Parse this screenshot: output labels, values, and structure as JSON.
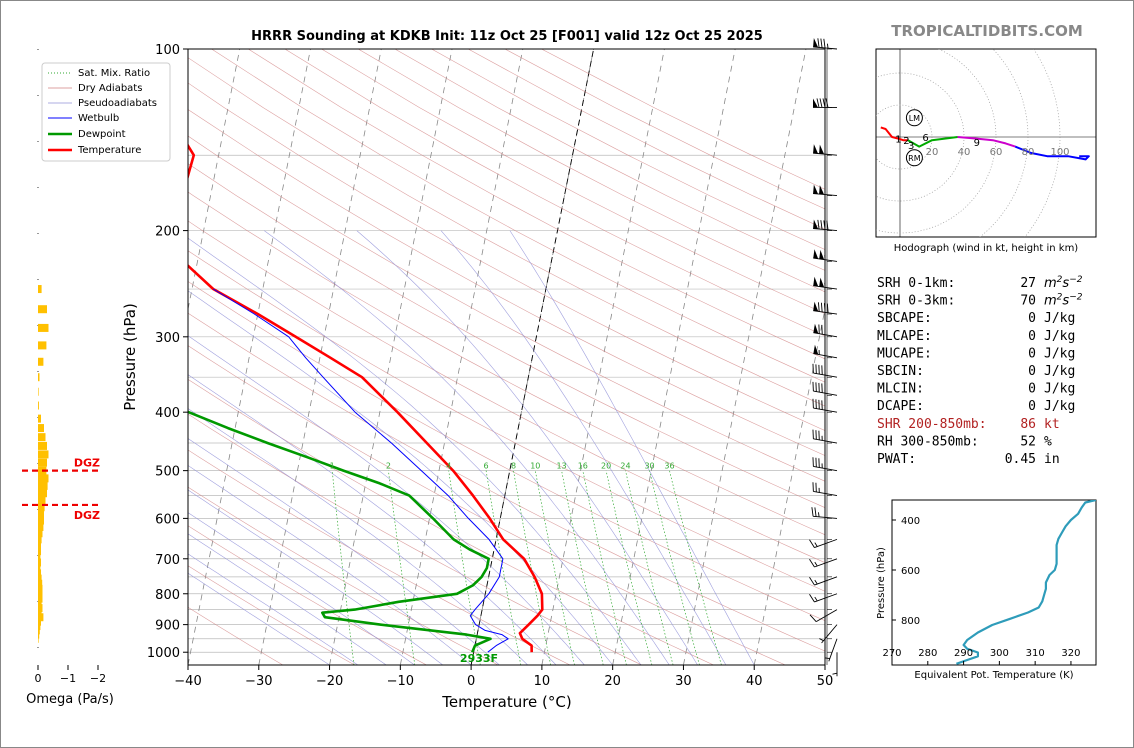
{
  "watermark": "TROPICALTIDBITS.COM",
  "chart_data": [
    {
      "type": "line",
      "title": "HRRR Sounding at KDKB Init: 11z Oct 25 [F001] valid 12z Oct 25 2025",
      "xlabel": "Temperature (°C)",
      "ylabel": "Pressure (hPa)",
      "xlim": [
        -40,
        50
      ],
      "ylim": [
        1050,
        100
      ],
      "yscale": "log",
      "skew": "skew-T",
      "xticks": [
        "−40",
        "−30",
        "−20",
        "−10",
        "0",
        "10",
        "20",
        "30",
        "40",
        "50"
      ],
      "yticks": [
        "100",
        "200",
        "300",
        "400",
        "500",
        "600",
        "700",
        "800",
        "900",
        "1000"
      ],
      "legend_position": "top-left",
      "legend": [
        "Sat. Mix. Ratio",
        "Dry Adiabats",
        "Pseudoadiabats",
        "Wetbulb",
        "Dewpoint",
        "Temperature"
      ],
      "mixing_ratio_labels": [
        "1",
        "2",
        "4",
        "6",
        "8",
        "10",
        "13",
        "16",
        "20",
        "24",
        "30",
        "36"
      ],
      "surface_label": "2933F",
      "series": [
        {
          "name": "Temperature",
          "color": "#ff0000",
          "points": [
            [
              8.2,
              1000
            ],
            [
              8.0,
              975
            ],
            [
              6.5,
              950
            ],
            [
              6.0,
              930
            ],
            [
              7.0,
              900
            ],
            [
              8.0,
              870
            ],
            [
              8.5,
              850
            ],
            [
              8.0,
              800
            ],
            [
              6.5,
              750
            ],
            [
              4.5,
              700
            ],
            [
              1.0,
              650
            ],
            [
              -1.5,
              600
            ],
            [
              -4.5,
              550
            ],
            [
              -8.0,
              500
            ],
            [
              -12.5,
              450
            ],
            [
              -17.5,
              400
            ],
            [
              -23.5,
              350
            ],
            [
              -28.5,
              325
            ],
            [
              -34.0,
              300
            ],
            [
              -40.0,
              275
            ],
            [
              -47.0,
              250
            ],
            [
              -52.0,
              225
            ],
            [
              -54.0,
              200
            ],
            [
              -54.0,
              175
            ],
            [
              -53.5,
              150
            ],
            [
              -59.0,
              125
            ],
            [
              -64.0,
              100
            ]
          ]
        },
        {
          "name": "Dewpoint",
          "color": "#009900",
          "points": [
            [
              -0.2,
              1000
            ],
            [
              0.0,
              975
            ],
            [
              2.0,
              950
            ],
            [
              -1.5,
              935
            ],
            [
              -14.0,
              900
            ],
            [
              -22.0,
              875
            ],
            [
              -22.5,
              860
            ],
            [
              -18.0,
              850
            ],
            [
              -12.0,
              825
            ],
            [
              -4.0,
              800
            ],
            [
              -2.0,
              775
            ],
            [
              -1.0,
              750
            ],
            [
              -0.5,
              725
            ],
            [
              -0.5,
              700
            ],
            [
              -3.5,
              675
            ],
            [
              -6.0,
              650
            ],
            [
              -9.5,
              600
            ],
            [
              -13.5,
              550
            ],
            [
              -18.0,
              525
            ],
            [
              -23.5,
              500
            ],
            [
              -29.0,
              475
            ],
            [
              -35.0,
              450
            ],
            [
              -41.0,
              425
            ],
            [
              -47.0,
              400
            ],
            [
              -52.0,
              375
            ],
            [
              -57.0,
              350
            ],
            [
              -63.0,
              325
            ],
            [
              -70.0,
              300
            ],
            [
              -74.5,
              275
            ],
            [
              -78.0,
              250
            ],
            [
              -82.0,
              225
            ],
            [
              -85.0,
              200
            ],
            [
              -89.0,
              175
            ],
            [
              -92.0,
              150
            ],
            [
              -95.5,
              125
            ],
            [
              -98.0,
              100
            ]
          ]
        },
        {
          "name": "Wetbulb",
          "color": "#0000ff",
          "points": [
            [
              2.0,
              1000
            ],
            [
              3.0,
              975
            ],
            [
              4.5,
              950
            ],
            [
              3.5,
              935
            ],
            [
              1.0,
              920
            ],
            [
              -0.5,
              900
            ],
            [
              -1.5,
              870
            ],
            [
              -1.0,
              850
            ],
            [
              0.5,
              800
            ],
            [
              1.5,
              750
            ],
            [
              1.5,
              700
            ],
            [
              -1.0,
              650
            ],
            [
              -4.5,
              600
            ],
            [
              -8.0,
              550
            ],
            [
              -12.5,
              500
            ],
            [
              -17.5,
              450
            ],
            [
              -23.5,
              400
            ],
            [
              -29.0,
              350
            ],
            [
              -32.0,
              325
            ],
            [
              -35.0,
              300
            ],
            [
              -40.5,
              275
            ],
            [
              -47.0,
              250
            ]
          ]
        }
      ]
    },
    {
      "type": "scatter",
      "title": "Hodograph (wind in kt, height in km)",
      "rings": [
        "20",
        "40",
        "60",
        "80",
        "100"
      ],
      "markers": [
        "LM",
        "RM"
      ],
      "height_labels": [
        "1",
        "2",
        "3",
        "6",
        "9"
      ],
      "series": [
        {
          "name": "0-3 km",
          "color": "#ff0000",
          "points": [
            [
              -12,
              6
            ],
            [
              -9,
              5
            ],
            [
              -5,
              0
            ],
            [
              -1,
              -1
            ],
            [
              2,
              -2
            ],
            [
              5,
              -2
            ]
          ]
        },
        {
          "name": "3-6 km",
          "color": "#00aa00",
          "points": [
            [
              5,
              -2
            ],
            [
              12,
              -6
            ],
            [
              20,
              -2
            ],
            [
              28,
              -1
            ],
            [
              36,
              0
            ]
          ]
        },
        {
          "name": "6-9 km",
          "color": "#cc00cc",
          "points": [
            [
              36,
              0
            ],
            [
              48,
              -1
            ],
            [
              58,
              -2
            ],
            [
              66,
              -4
            ],
            [
              72,
              -6
            ]
          ]
        },
        {
          "name": "9-12 km",
          "color": "#0000ff",
          "points": [
            [
              72,
              -6
            ],
            [
              82,
              -10
            ],
            [
              92,
              -12
            ],
            [
              105,
              -12
            ],
            [
              116,
              -14
            ],
            [
              118,
              -12
            ],
            [
              112,
              -12
            ]
          ]
        }
      ]
    },
    {
      "type": "line",
      "title": "",
      "xlabel": "Equivalent Pot. Temperature (K)",
      "ylabel": "Pressure (hPa)",
      "xlim": [
        270,
        327
      ],
      "ylim": [
        980,
        320
      ],
      "xticks": [
        "270",
        "280",
        "290",
        "300",
        "310",
        "320"
      ],
      "yticks": [
        "400",
        "600",
        "800"
      ],
      "series": [
        {
          "name": "theta-e",
          "color": "#2e9cba",
          "points": [
            [
              288,
              975
            ],
            [
              291,
              960
            ],
            [
              294,
              945
            ],
            [
              294,
              930
            ],
            [
              291,
              915
            ],
            [
              290,
              900
            ],
            [
              291,
              880
            ],
            [
              294,
              850
            ],
            [
              298,
              820
            ],
            [
              303,
              795
            ],
            [
              308,
              770
            ],
            [
              311,
              750
            ],
            [
              312,
              725
            ],
            [
              312.5,
              700
            ],
            [
              313,
              675
            ],
            [
              313,
              650
            ],
            [
              314,
              620
            ],
            [
              315.5,
              600
            ],
            [
              316,
              575
            ],
            [
              316,
              550
            ],
            [
              316,
              525
            ],
            [
              316,
              500
            ],
            [
              316.5,
              475
            ],
            [
              317.5,
              450
            ],
            [
              318.5,
              425
            ],
            [
              320,
              400
            ],
            [
              322,
              375
            ],
            [
              323,
              350
            ],
            [
              324,
              330
            ],
            [
              327,
              320
            ]
          ]
        }
      ]
    },
    {
      "type": "bar",
      "title": "",
      "xlabel": "Omega (Pa/s)",
      "xlim": [
        0,
        -2
      ],
      "xticks": [
        "0",
        "−1",
        "−2"
      ],
      "dgz_label": "DGZ",
      "dgz_levels_hpa": [
        500,
        570
      ],
      "levels_hpa": [
        230,
        250,
        270,
        290,
        310,
        330,
        350,
        370,
        390,
        410,
        425,
        440,
        455,
        470,
        485,
        500,
        515,
        530,
        545,
        560,
        575,
        590,
        605,
        620,
        635,
        650,
        665,
        680,
        695,
        710,
        725,
        740,
        755,
        770,
        785,
        800,
        815,
        830,
        845,
        860,
        875,
        890,
        905,
        920,
        935,
        950
      ],
      "values": [
        0,
        -0.12,
        -0.3,
        -0.35,
        -0.28,
        -0.18,
        -0.05,
        -0.02,
        -0.03,
        -0.1,
        -0.2,
        -0.25,
        -0.3,
        -0.35,
        -0.3,
        -0.28,
        -0.35,
        -0.32,
        -0.3,
        -0.25,
        -0.22,
        -0.2,
        -0.2,
        -0.18,
        -0.15,
        -0.12,
        -0.1,
        -0.1,
        -0.08,
        -0.1,
        -0.08,
        -0.1,
        -0.12,
        -0.14,
        -0.15,
        -0.15,
        -0.15,
        -0.12,
        -0.15,
        -0.12,
        -0.18,
        -0.1,
        -0.08,
        -0.06,
        -0.04,
        -0.02
      ]
    }
  ],
  "barbs": [
    {
      "p": 100,
      "dir": 275,
      "spd": 85
    },
    {
      "p": 125,
      "dir": 270,
      "spd": 90
    },
    {
      "p": 150,
      "dir": 275,
      "spd": 100
    },
    {
      "p": 175,
      "dir": 275,
      "spd": 100
    },
    {
      "p": 200,
      "dir": 275,
      "spd": 90
    },
    {
      "p": 225,
      "dir": 278,
      "spd": 105
    },
    {
      "p": 250,
      "dir": 278,
      "spd": 105
    },
    {
      "p": 275,
      "dir": 278,
      "spd": 90
    },
    {
      "p": 300,
      "dir": 280,
      "spd": 70
    },
    {
      "p": 325,
      "dir": 280,
      "spd": 55
    },
    {
      "p": 350,
      "dir": 280,
      "spd": 45
    },
    {
      "p": 375,
      "dir": 280,
      "spd": 40
    },
    {
      "p": 400,
      "dir": 280,
      "spd": 40
    },
    {
      "p": 450,
      "dir": 280,
      "spd": 35
    },
    {
      "p": 500,
      "dir": 280,
      "spd": 35
    },
    {
      "p": 550,
      "dir": 280,
      "spd": 25
    },
    {
      "p": 600,
      "dir": 275,
      "spd": 25
    },
    {
      "p": 650,
      "dir": 250,
      "spd": 15
    },
    {
      "p": 700,
      "dir": 250,
      "spd": 15
    },
    {
      "p": 750,
      "dir": 250,
      "spd": 15
    },
    {
      "p": 800,
      "dir": 250,
      "spd": 15
    },
    {
      "p": 850,
      "dir": 240,
      "spd": 10
    },
    {
      "p": 900,
      "dir": 220,
      "spd": 5
    },
    {
      "p": 950,
      "dir": 200,
      "spd": 5
    },
    {
      "p": 1000,
      "dir": 180,
      "spd": 5
    }
  ],
  "indices": [
    {
      "label": "SRH 0-1km:",
      "value": "27",
      "unit": "m2s-2",
      "highlight": false
    },
    {
      "label": "SRH 0-3km:",
      "value": "70",
      "unit": "m2s-2",
      "highlight": false
    },
    {
      "label": "SBCAPE:",
      "value": "0",
      "unit": "J/kg",
      "highlight": false
    },
    {
      "label": "MLCAPE:",
      "value": "0",
      "unit": "J/kg",
      "highlight": false
    },
    {
      "label": "MUCAPE:",
      "value": "0",
      "unit": "J/kg",
      "highlight": false
    },
    {
      "label": "SBCIN:",
      "value": "0",
      "unit": "J/kg",
      "highlight": false
    },
    {
      "label": "MLCIN:",
      "value": "0",
      "unit": "J/kg",
      "highlight": false
    },
    {
      "label": "DCAPE:",
      "value": "0",
      "unit": "J/kg",
      "highlight": false
    },
    {
      "label": "SHR 200-850mb:",
      "value": "86",
      "unit": "kt",
      "highlight": true
    },
    {
      "label": "RH 300-850mb:",
      "value": "52",
      "unit": "%",
      "highlight": false
    },
    {
      "label": "PWAT:",
      "value": "0.45",
      "unit": "in",
      "highlight": false
    }
  ],
  "colors": {
    "temperature": "#ff0000",
    "dewpoint": "#009900",
    "wetbulb": "#0000ff",
    "dry_adiabat": "#d08080",
    "moist_adiabat": "#9090d8",
    "mixing_ratio": "#33aa33",
    "isotherm": "#999999",
    "omega": "#ffc000",
    "dgz": "#ee0000",
    "thetae": "#2e9cba",
    "highlight_text": "#b22222",
    "watermark": "#888888"
  }
}
